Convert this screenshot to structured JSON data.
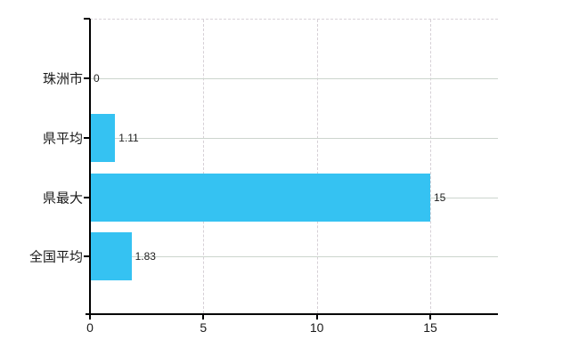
{
  "chart_data": {
    "type": "bar",
    "orientation": "horizontal",
    "title": "",
    "xlabel": "",
    "ylabel": "",
    "categories": [
      "珠洲市",
      "県平均",
      "県最大",
      "全国平均"
    ],
    "values": [
      0,
      1.11,
      15,
      1.83
    ],
    "value_labels": [
      "0",
      "1.11",
      "15",
      "1.83"
    ],
    "x_ticks": [
      0,
      5,
      10,
      15
    ],
    "x_tick_labels": [
      "0",
      "5",
      "10",
      "15"
    ],
    "xlim": [
      0,
      17.95
    ],
    "grid": true,
    "legend_position": "none",
    "bar_color": "#35c2f2",
    "axis_color": "#000000",
    "horizontal_gridline_color": "#ccd5cd",
    "vertical_gridline_color": "#d6d0d6",
    "background_color": "#ffffff"
  }
}
